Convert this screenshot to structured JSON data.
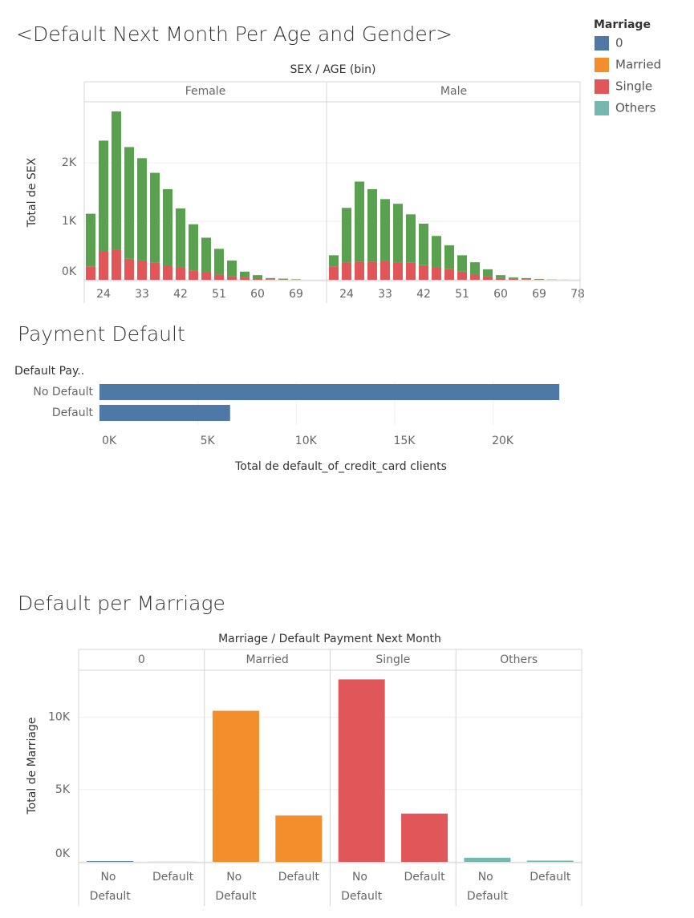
{
  "legend": {
    "title": "Marriage",
    "items": [
      {
        "name": "0",
        "color": "#4e79a7"
      },
      {
        "name": "Married",
        "color": "#f28e2b"
      },
      {
        "name": "Single",
        "color": "#e15759"
      },
      {
        "name": "Others",
        "color": "#76b7b2"
      }
    ]
  },
  "chart_data": [
    {
      "type": "stacked-bar",
      "title": "<Default Next Month Per Age and Gender>",
      "header": "SEX / AGE (bin)",
      "y_label": "Total de SEX",
      "ylim": [
        0,
        3030
      ],
      "yticks": [
        {
          "value": 0,
          "label": "0K"
        },
        {
          "value": 1000,
          "label": "1K"
        },
        {
          "value": 2000,
          "label": "2K"
        }
      ],
      "grid": true,
      "facets": [
        {
          "name": "Female",
          "categories": [
            null,
            24,
            null,
            null,
            33,
            null,
            null,
            42,
            null,
            null,
            51,
            null,
            null,
            60,
            null,
            null,
            69
          ],
          "series": [
            {
              "color": "#e15759",
              "values": [
                230,
                480,
                520,
                360,
                330,
                290,
                240,
                220,
                160,
                130,
                90,
                60,
                40,
                20,
                10,
                5,
                3
              ]
            },
            {
              "color": "#59a14f",
              "values": [
                900,
                1900,
                2360,
                1910,
                1750,
                1540,
                1310,
                1000,
                790,
                590,
                440,
                270,
                100,
                60,
                20,
                15,
                7
              ]
            }
          ]
        },
        {
          "name": "Male",
          "categories": [
            null,
            24,
            null,
            null,
            33,
            null,
            null,
            42,
            null,
            null,
            51,
            null,
            null,
            60,
            null,
            null,
            69,
            null,
            null,
            78
          ],
          "series": [
            {
              "color": "#e15759",
              "values": [
                230,
                300,
                310,
                310,
                330,
                300,
                290,
                250,
                220,
                180,
                140,
                90,
                60,
                30,
                15,
                10,
                5,
                1,
                1,
                0
              ]
            },
            {
              "color": "#59a14f",
              "values": [
                190,
                930,
                1370,
                1240,
                1050,
                1000,
                830,
                710,
                530,
                410,
                280,
                210,
                120,
                50,
                25,
                20,
                10,
                4,
                1,
                1
              ]
            }
          ]
        }
      ]
    },
    {
      "type": "hbar",
      "title": "Payment Default",
      "axis_title": "Default Pay..",
      "x_label": "Total de default_of_credit_card clients",
      "categories": [
        "No Default",
        "Default"
      ],
      "values": [
        23364,
        6636
      ],
      "color": "#4e79a7",
      "xlim": [
        0,
        24500
      ],
      "xticks": [
        {
          "value": 0,
          "label": "0K"
        },
        {
          "value": 5000,
          "label": "5K"
        },
        {
          "value": 10000,
          "label": "10K"
        },
        {
          "value": 15000,
          "label": "15K"
        },
        {
          "value": 20000,
          "label": "20K"
        }
      ],
      "grid": true
    },
    {
      "type": "bar",
      "title": "Default per Marriage",
      "header": "Marriage  / Default Payment Next Month",
      "y_label": "Total de Marriage",
      "categories": [
        "No Default",
        "Default"
      ],
      "ylim": [
        0,
        13200
      ],
      "yticks": [
        {
          "value": 0,
          "label": "0K"
        },
        {
          "value": 5000,
          "label": "5K"
        },
        {
          "value": 10000,
          "label": "10K"
        }
      ],
      "grid": true,
      "facets": [
        {
          "name": "0",
          "color": "#4e79a7",
          "values": [
            49,
            5
          ]
        },
        {
          "name": "Married",
          "color": "#f28e2b",
          "values": [
            10453,
            3206
          ]
        },
        {
          "name": "Single",
          "color": "#e15759",
          "values": [
            12623,
            3341
          ]
        },
        {
          "name": "Others",
          "color": "#76b7b2",
          "values": [
            288,
            89
          ]
        }
      ]
    }
  ]
}
